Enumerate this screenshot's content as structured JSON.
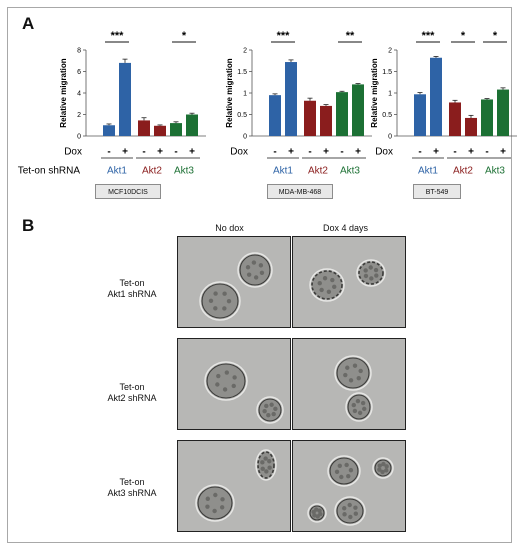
{
  "panel_a": {
    "letter": "A"
  },
  "panel_b": {
    "letter": "B",
    "col_headers": [
      "No dox",
      "Dox 4 days"
    ],
    "row_labels": [
      [
        "Tet-on",
        "Akt1 shRNA"
      ],
      [
        "Tet-on",
        "Akt2 shRNA"
      ],
      [
        "Tet-on",
        "Akt3 shRNA"
      ]
    ]
  },
  "colors": {
    "Akt1": "#2e63a6",
    "Akt2": "#8a1d1d",
    "Akt3": "#1c7034"
  },
  "chart_data": [
    {
      "type": "bar",
      "cell_line": "MCF10DCIS",
      "ylabel": "Relative migration",
      "ylim": [
        0,
        8
      ],
      "yticks": [
        "0",
        "2",
        "4",
        "6",
        "8"
      ],
      "categories": [
        "Akt1 -",
        "Akt1 +",
        "Akt2 -",
        "Akt2 +",
        "Akt3 -",
        "Akt3 +"
      ],
      "values": [
        1.0,
        6.8,
        1.45,
        0.95,
        1.2,
        2.0
      ],
      "errors": [
        0.12,
        0.35,
        0.25,
        0.08,
        0.12,
        0.12
      ],
      "significance": [
        "***",
        "",
        "*"
      ],
      "row_dox_label": "Dox",
      "dox_marks": [
        "-",
        "+",
        "-",
        "+",
        "-",
        "+"
      ],
      "row_shrna_label": "Tet-on shRNA",
      "groups": [
        "Akt1",
        "Akt2",
        "Akt3"
      ]
    },
    {
      "type": "bar",
      "cell_line": "MDA-MB-468",
      "ylabel": "Relative migration",
      "ylim": [
        0,
        2
      ],
      "yticks": [
        "0",
        "0.5",
        "1",
        "1.5",
        "2"
      ],
      "categories": [
        "Akt1 -",
        "Akt1 +",
        "Akt2 -",
        "Akt2 +",
        "Akt3 -",
        "Akt3 +"
      ],
      "values": [
        0.95,
        1.72,
        0.82,
        0.7,
        1.02,
        1.2
      ],
      "errors": [
        0.03,
        0.05,
        0.06,
        0.03,
        0.02,
        0.02
      ],
      "significance": [
        "***",
        "",
        "**"
      ],
      "row_dox_label": "Dox",
      "dox_marks": [
        "-",
        "+",
        "-",
        "+",
        "-",
        "+"
      ],
      "groups": [
        "Akt1",
        "Akt2",
        "Akt3"
      ]
    },
    {
      "type": "bar",
      "cell_line": "BT-549",
      "ylabel": "Relative migration",
      "ylim": [
        0,
        2
      ],
      "yticks": [
        "0",
        "0.5",
        "1",
        "1.5",
        "2"
      ],
      "categories": [
        "Akt1 -",
        "Akt1 +",
        "Akt2 -",
        "Akt2 +",
        "Akt3 -",
        "Akt3 +"
      ],
      "values": [
        0.97,
        1.82,
        0.78,
        0.42,
        0.85,
        1.08
      ],
      "errors": [
        0.04,
        0.03,
        0.05,
        0.06,
        0.02,
        0.04
      ],
      "significance": [
        "***",
        "*",
        "*"
      ],
      "row_dox_label": "Dox",
      "dox_marks": [
        "-",
        "+",
        "-",
        "+",
        "-",
        "+"
      ],
      "groups": [
        "Akt1",
        "Akt2",
        "Akt3"
      ]
    }
  ]
}
